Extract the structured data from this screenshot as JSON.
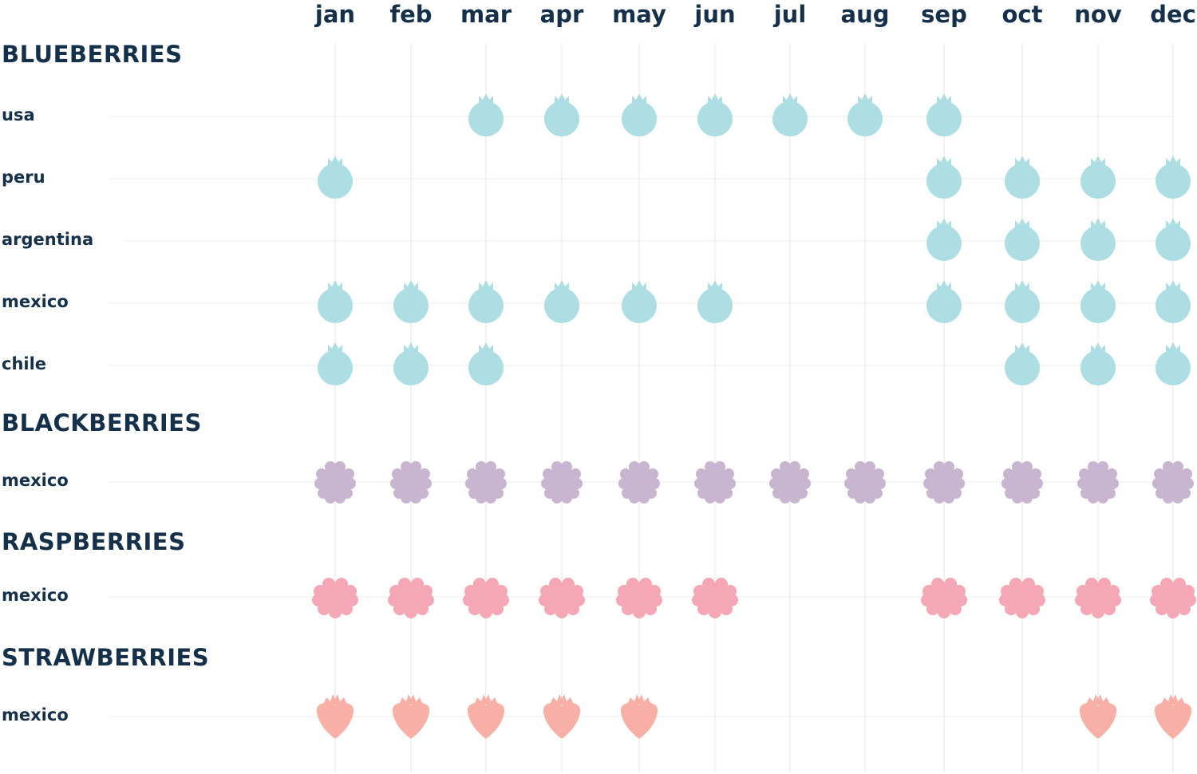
{
  "chart_data": {
    "type": "table",
    "months": [
      "jan",
      "feb",
      "mar",
      "apr",
      "may",
      "jun",
      "jul",
      "aug",
      "sep",
      "oct",
      "nov",
      "dec"
    ],
    "sections": [
      {
        "title": "BLUEBERRIES",
        "fruit": "blueberry",
        "color": "#acdee3",
        "rows": [
          {
            "label": "usa",
            "months": [
              "mar",
              "apr",
              "may",
              "jun",
              "jul",
              "aug",
              "sep"
            ]
          },
          {
            "label": "peru",
            "months": [
              "jan",
              "sep",
              "oct",
              "nov",
              "dec"
            ]
          },
          {
            "label": "argentina",
            "months": [
              "sep",
              "oct",
              "nov",
              "dec"
            ]
          },
          {
            "label": "mexico",
            "months": [
              "jan",
              "feb",
              "mar",
              "apr",
              "may",
              "jun",
              "sep",
              "oct",
              "nov",
              "dec"
            ]
          },
          {
            "label": "chile",
            "months": [
              "jan",
              "feb",
              "mar",
              "oct",
              "nov",
              "dec"
            ]
          }
        ]
      },
      {
        "title": "BLACKBERRIES",
        "fruit": "blackberry",
        "color": "#c8b5cf",
        "rows": [
          {
            "label": "mexico",
            "months": [
              "jan",
              "feb",
              "mar",
              "apr",
              "may",
              "jun",
              "jul",
              "aug",
              "sep",
              "oct",
              "nov",
              "dec"
            ]
          }
        ]
      },
      {
        "title": "RASPBERRIES",
        "fruit": "raspberry",
        "color": "#f5a7b5",
        "rows": [
          {
            "label": "mexico",
            "months": [
              "jan",
              "feb",
              "mar",
              "apr",
              "may",
              "jun",
              "sep",
              "oct",
              "nov",
              "dec"
            ]
          }
        ]
      },
      {
        "title": "STRAWBERRIES",
        "fruit": "strawberry",
        "color": "#f8afa6",
        "rows": [
          {
            "label": "mexico",
            "months": [
              "jan",
              "feb",
              "mar",
              "apr",
              "may",
              "nov",
              "dec"
            ]
          }
        ]
      }
    ],
    "text_color": "#14304a",
    "grid": true
  }
}
